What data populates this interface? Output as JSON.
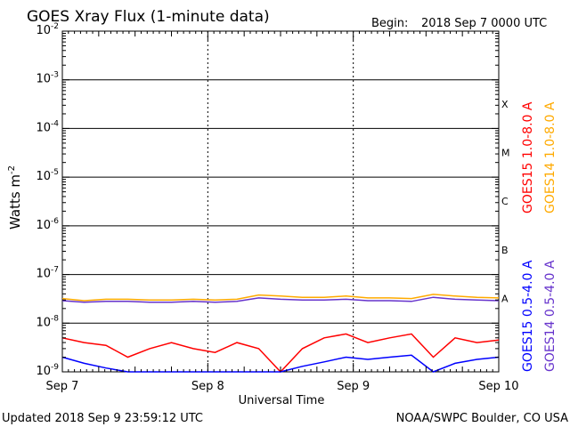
{
  "chart_data": {
    "type": "line",
    "title": "GOES Xray Flux (1-minute data)",
    "begin_label": "Begin:",
    "begin_value": "2018 Sep 7 0000 UTC",
    "xlabel": "Universal Time",
    "ylabel": "Watts m",
    "ylabel_exponent": "-2",
    "x_ticks": [
      "Sep 7",
      "Sep 8",
      "Sep 9",
      "Sep 10"
    ],
    "x_range_days": [
      0,
      3
    ],
    "yscale": "log",
    "ylim": [
      1e-09,
      0.01
    ],
    "y_ticks": [
      {
        "base": "10",
        "exp": "-9",
        "value": 1e-09
      },
      {
        "base": "10",
        "exp": "-8",
        "value": 1e-08
      },
      {
        "base": "10",
        "exp": "-7",
        "value": 1e-07
      },
      {
        "base": "10",
        "exp": "-6",
        "value": 1e-06
      },
      {
        "base": "10",
        "exp": "-5",
        "value": 1e-05
      },
      {
        "base": "10",
        "exp": "-4",
        "value": 0.0001
      },
      {
        "base": "10",
        "exp": "-3",
        "value": 0.001
      },
      {
        "base": "10",
        "exp": "-2",
        "value": 0.01
      }
    ],
    "flare_classes": [
      {
        "label": "A",
        "value": 3.2e-08
      },
      {
        "label": "B",
        "value": 3.2e-07
      },
      {
        "label": "C",
        "value": 3.2e-06
      },
      {
        "label": "M",
        "value": 3.2e-05
      },
      {
        "label": "X",
        "value": 0.00032
      }
    ],
    "legend_placement": "right",
    "series": [
      {
        "name": "GOES15 1.0-8.0 A",
        "color": "#ff0000",
        "x": [
          0.0,
          0.15,
          0.3,
          0.45,
          0.6,
          0.75,
          0.9,
          1.05,
          1.2,
          1.35,
          1.5,
          1.65,
          1.8,
          1.95,
          2.1,
          2.25,
          2.4,
          2.55,
          2.7,
          2.85,
          3.0
        ],
        "y": [
          5e-09,
          4e-09,
          3.5e-09,
          2e-09,
          3e-09,
          4e-09,
          3e-09,
          2.5e-09,
          4e-09,
          3e-09,
          1e-09,
          3e-09,
          5e-09,
          6e-09,
          4e-09,
          5e-09,
          6e-09,
          2e-09,
          5e-09,
          4e-09,
          4.5e-09
        ]
      },
      {
        "name": "GOES14 1.0-8.0 A",
        "color": "#ffaa00",
        "x": [
          0.0,
          0.15,
          0.3,
          0.45,
          0.6,
          0.75,
          0.9,
          1.05,
          1.2,
          1.35,
          1.5,
          1.65,
          1.8,
          1.95,
          2.1,
          2.25,
          2.4,
          2.55,
          2.7,
          2.85,
          3.0
        ],
        "y": [
          3.2e-08,
          2.9e-08,
          3.1e-08,
          3.1e-08,
          3e-08,
          3e-08,
          3.1e-08,
          3e-08,
          3.1e-08,
          3.8e-08,
          3.6e-08,
          3.4e-08,
          3.4e-08,
          3.6e-08,
          3.3e-08,
          3.3e-08,
          3.2e-08,
          3.9e-08,
          3.6e-08,
          3.4e-08,
          3.3e-08
        ]
      },
      {
        "name": "GOES15 0.5-4.0 A",
        "color": "#0000ff",
        "x": [
          0.0,
          0.15,
          0.3,
          0.45,
          0.6,
          0.75,
          0.9,
          1.05,
          1.2,
          1.35,
          1.5,
          1.65,
          1.8,
          1.95,
          2.1,
          2.25,
          2.4,
          2.55,
          2.7,
          2.85,
          3.0
        ],
        "y": [
          2e-09,
          1.5e-09,
          1.2e-09,
          1e-09,
          1e-09,
          1e-09,
          1e-09,
          1e-09,
          1e-09,
          1e-09,
          1e-09,
          1.3e-09,
          1.6e-09,
          2e-09,
          1.8e-09,
          2e-09,
          2.2e-09,
          1e-09,
          1.5e-09,
          1.8e-09,
          2e-09
        ]
      },
      {
        "name": "GOES14 0.5-4.0 A",
        "color": "#6633cc",
        "x": [
          0.0,
          0.15,
          0.3,
          0.45,
          0.6,
          0.75,
          0.9,
          1.05,
          1.2,
          1.35,
          1.5,
          1.65,
          1.8,
          1.95,
          2.1,
          2.25,
          2.4,
          2.55,
          2.7,
          2.85,
          3.0
        ],
        "y": [
          2.9e-08,
          2.7e-08,
          2.8e-08,
          2.8e-08,
          2.7e-08,
          2.7e-08,
          2.8e-08,
          2.7e-08,
          2.8e-08,
          3.3e-08,
          3.1e-08,
          3e-08,
          3e-08,
          3.1e-08,
          2.9e-08,
          2.9e-08,
          2.8e-08,
          3.4e-08,
          3.1e-08,
          3e-08,
          2.9e-08
        ]
      }
    ]
  },
  "footer": {
    "updated": "Updated 2018 Sep  9 23:59:12 UTC",
    "credit": "NOAA/SWPC Boulder, CO USA"
  }
}
